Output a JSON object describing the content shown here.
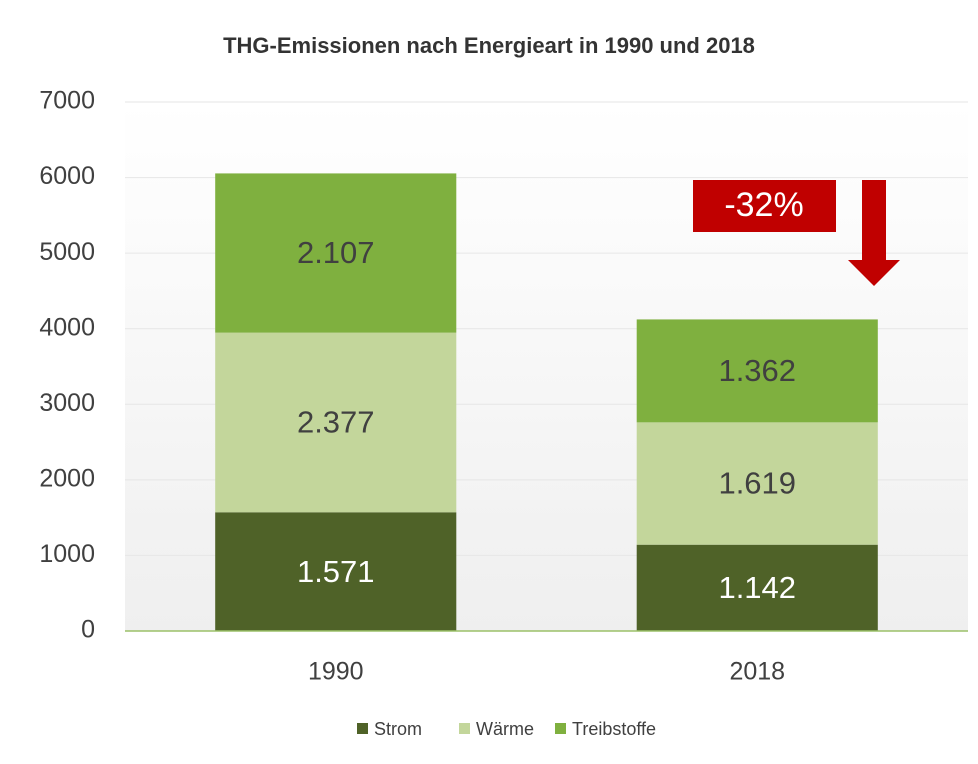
{
  "chart_data": {
    "type": "stacked_bar",
    "title": "THG-Emissionen nach Energieart in 1990 und 2018",
    "categories": [
      "1990",
      "2018"
    ],
    "series": [
      {
        "name": "Strom",
        "color": "#4f6228",
        "values": [
          1571,
          1142
        ],
        "value_labels": [
          "1.571",
          "1.142"
        ]
      },
      {
        "name": "Wärme",
        "color": "#c3d69b",
        "values": [
          2377,
          1619
        ],
        "value_labels": [
          "2.377",
          "1.619"
        ]
      },
      {
        "name": "Treibstoffe",
        "color": "#7fb03f",
        "values": [
          2107,
          1362
        ],
        "value_labels": [
          "2.107",
          "1.362"
        ]
      }
    ],
    "ylim": [
      0,
      7000
    ],
    "yticks": [
      0,
      1000,
      2000,
      3000,
      4000,
      5000,
      6000,
      7000
    ],
    "grid": true,
    "legend": "bottom",
    "annotations": [
      {
        "text": "-32%"
      }
    ]
  }
}
